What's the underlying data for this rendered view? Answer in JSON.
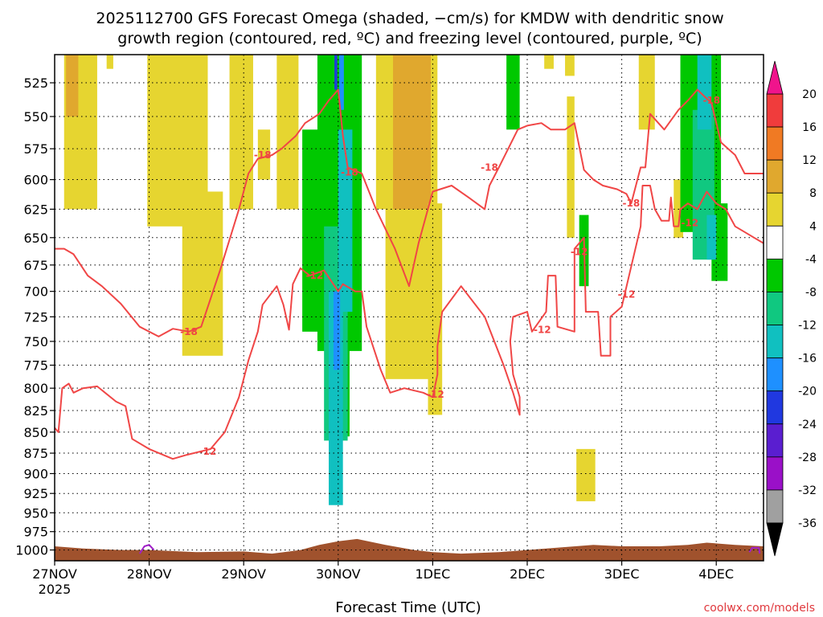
{
  "chart_data": {
    "type": "heatmap",
    "title_lines": [
      "2025112700 GFS Forecast Omega (shaded, −cm/s) for KMDW with dendritic snow",
      "growth region (contoured, red, ºC) and freezing level (contoured, purple, ºC)"
    ],
    "xlabel": "Forecast Time (UTC)",
    "ylabel": "",
    "credit": "coolwx.com/models",
    "x_ticks": [
      {
        "day": 0,
        "label": "27NOV",
        "sublabel": "2025"
      },
      {
        "day": 1,
        "label": "28NOV"
      },
      {
        "day": 2,
        "label": "29NOV"
      },
      {
        "day": 3,
        "label": "30NOV"
      },
      {
        "day": 4,
        "label": "1DEC"
      },
      {
        "day": 5,
        "label": "2DEC"
      },
      {
        "day": 6,
        "label": "3DEC"
      },
      {
        "day": 7,
        "label": "4DEC"
      }
    ],
    "xlim": [
      0,
      7.5
    ],
    "y_ticks": [
      525,
      550,
      575,
      600,
      625,
      650,
      675,
      700,
      725,
      750,
      775,
      800,
      825,
      850,
      875,
      900,
      925,
      950,
      975,
      1000
    ],
    "ylim": [
      1015,
      505
    ],
    "y_scale": "log",
    "grid": true,
    "colorbar": {
      "labels": [
        "20",
        "16",
        "12",
        "8",
        "4",
        "-4",
        "-8",
        "-12",
        "-16",
        "-20",
        "-24",
        "-28",
        "-32",
        "-36"
      ],
      "colors": [
        "#f03c3c",
        "#f07a23",
        "#e0a82e",
        "#e6d530",
        "#ffffff",
        "#00c800",
        "#10c880",
        "#10c0c0",
        "#1e90ff",
        "#2038e0",
        "#5a1ed0",
        "#9a10c8",
        "#a0a0a0"
      ],
      "top_arrow_color": "#f0148c",
      "bottom_arrow_color": "#000000"
    },
    "omega_regions": [
      {
        "color": "#e6d530",
        "x0": 0.1,
        "x1": 0.45,
        "p_top": 505,
        "p_bot": 625
      },
      {
        "color": "#e0a82e",
        "x0": 0.12,
        "x1": 0.25,
        "p_top": 505,
        "p_bot": 550
      },
      {
        "color": "#e6d530",
        "x0": 0.55,
        "x1": 0.62,
        "p_top": 505,
        "p_bot": 515
      },
      {
        "color": "#e6d530",
        "x0": 0.98,
        "x1": 1.62,
        "p_top": 505,
        "p_bot": 640
      },
      {
        "color": "#e6d530",
        "x0": 1.35,
        "x1": 1.78,
        "p_top": 610,
        "p_bot": 765
      },
      {
        "color": "#e6d530",
        "x0": 1.85,
        "x1": 2.1,
        "p_top": 505,
        "p_bot": 625
      },
      {
        "color": "#e6d530",
        "x0": 2.15,
        "x1": 2.28,
        "p_top": 560,
        "p_bot": 600
      },
      {
        "color": "#e6d530",
        "x0": 2.35,
        "x1": 2.58,
        "p_top": 505,
        "p_bot": 625
      },
      {
        "color": "#00c800",
        "x0": 2.62,
        "x1": 2.82,
        "p_top": 560,
        "p_bot": 740
      },
      {
        "color": "#00c800",
        "x0": 2.78,
        "x1": 3.25,
        "p_top": 505,
        "p_bot": 760
      },
      {
        "color": "#00c800",
        "x0": 2.9,
        "x1": 3.12,
        "p_top": 700,
        "p_bot": 855
      },
      {
        "color": "#10c880",
        "x0": 2.85,
        "x1": 3.1,
        "p_top": 640,
        "p_bot": 860
      },
      {
        "color": "#10c0c0",
        "x0": 2.9,
        "x1": 3.05,
        "p_top": 700,
        "p_bot": 940
      },
      {
        "color": "#10c0c0",
        "x0": 3.0,
        "x1": 3.15,
        "p_top": 560,
        "p_bot": 720
      },
      {
        "color": "#1e90ff",
        "x0": 2.95,
        "x1": 3.02,
        "p_top": 700,
        "p_bot": 780
      },
      {
        "color": "#1e90ff",
        "x0": 3.01,
        "x1": 3.06,
        "p_top": 505,
        "p_bot": 545
      },
      {
        "color": "#2038e0",
        "x0": 2.96,
        "x1": 2.99,
        "p_top": 505,
        "p_bot": 530
      },
      {
        "color": "#e6d530",
        "x0": 3.4,
        "x1": 3.7,
        "p_top": 505,
        "p_bot": 625
      },
      {
        "color": "#e6d530",
        "x0": 3.5,
        "x1": 4.05,
        "p_top": 505,
        "p_bot": 790
      },
      {
        "color": "#e0a82e",
        "x0": 3.58,
        "x1": 3.98,
        "p_top": 505,
        "p_bot": 625
      },
      {
        "color": "#e6d530",
        "x0": 3.95,
        "x1": 4.1,
        "p_top": 620,
        "p_bot": 830
      },
      {
        "color": "#00c800",
        "x0": 4.78,
        "x1": 4.92,
        "p_top": 505,
        "p_bot": 560
      },
      {
        "color": "#e6d530",
        "x0": 5.18,
        "x1": 5.28,
        "p_top": 505,
        "p_bot": 515
      },
      {
        "color": "#e6d530",
        "x0": 5.4,
        "x1": 5.5,
        "p_top": 505,
        "p_bot": 520
      },
      {
        "color": "#e6d530",
        "x0": 5.42,
        "x1": 5.5,
        "p_top": 535,
        "p_bot": 650
      },
      {
        "color": "#00c800",
        "x0": 5.55,
        "x1": 5.65,
        "p_top": 630,
        "p_bot": 695
      },
      {
        "color": "#e6d530",
        "x0": 5.52,
        "x1": 5.72,
        "p_top": 870,
        "p_bot": 935
      },
      {
        "color": "#e6d530",
        "x0": 6.18,
        "x1": 6.35,
        "p_top": 505,
        "p_bot": 560
      },
      {
        "color": "#e6d530",
        "x0": 6.55,
        "x1": 6.65,
        "p_top": 600,
        "p_bot": 650
      },
      {
        "color": "#00c800",
        "x0": 6.62,
        "x1": 7.05,
        "p_top": 505,
        "p_bot": 645
      },
      {
        "color": "#00c800",
        "x0": 6.95,
        "x1": 7.12,
        "p_top": 620,
        "p_bot": 690
      },
      {
        "color": "#10c880",
        "x0": 6.75,
        "x1": 6.98,
        "p_top": 545,
        "p_bot": 670
      },
      {
        "color": "#10c0c0",
        "x0": 6.8,
        "x1": 6.95,
        "p_top": 505,
        "p_bot": 560
      },
      {
        "color": "#10c0c0",
        "x0": 6.9,
        "x1": 7.0,
        "p_top": 630,
        "p_bot": 670
      }
    ],
    "contours": [
      {
        "level": -12,
        "color": "#f04646",
        "points": [
          [
            0.0,
            845
          ],
          [
            0.04,
            850
          ],
          [
            0.08,
            800
          ],
          [
            0.15,
            795
          ],
          [
            0.2,
            805
          ],
          [
            0.3,
            800
          ],
          [
            0.45,
            798
          ],
          [
            0.65,
            815
          ],
          [
            0.75,
            820
          ],
          [
            0.82,
            858
          ],
          [
            1.0,
            870
          ],
          [
            1.25,
            882
          ],
          [
            1.4,
            877
          ],
          [
            1.65,
            870
          ],
          [
            1.8,
            850
          ],
          [
            1.95,
            810
          ],
          [
            2.05,
            770
          ],
          [
            2.15,
            740
          ],
          [
            2.2,
            713
          ],
          [
            2.35,
            695
          ],
          [
            2.42,
            713
          ],
          [
            2.48,
            738
          ],
          [
            2.52,
            693
          ],
          [
            2.6,
            678
          ],
          [
            2.7,
            685
          ],
          [
            2.85,
            680
          ],
          [
            3.0,
            700
          ],
          [
            3.05,
            693
          ],
          [
            3.18,
            700
          ],
          [
            3.25,
            700
          ],
          [
            3.3,
            735
          ],
          [
            3.45,
            780
          ],
          [
            3.55,
            805
          ],
          [
            3.7,
            800
          ],
          [
            3.9,
            805
          ],
          [
            4.0,
            810
          ],
          [
            4.05,
            785
          ],
          [
            4.05,
            755
          ],
          [
            4.1,
            720
          ],
          [
            4.3,
            695
          ],
          [
            4.55,
            725
          ],
          [
            4.75,
            775
          ],
          [
            4.85,
            805
          ],
          [
            4.92,
            830
          ],
          [
            4.92,
            810
          ],
          [
            4.85,
            785
          ],
          [
            4.82,
            750
          ],
          [
            4.85,
            725
          ],
          [
            5.0,
            720
          ],
          [
            5.05,
            740
          ],
          [
            5.2,
            720
          ],
          [
            5.22,
            685
          ],
          [
            5.3,
            685
          ],
          [
            5.32,
            735
          ],
          [
            5.5,
            740
          ],
          [
            5.5,
            660
          ],
          [
            5.6,
            650
          ],
          [
            5.62,
            720
          ],
          [
            5.75,
            720
          ],
          [
            5.78,
            765
          ],
          [
            5.88,
            765
          ],
          [
            5.88,
            725
          ],
          [
            6.0,
            715
          ],
          [
            6.2,
            640
          ],
          [
            6.22,
            605
          ],
          [
            6.3,
            605
          ],
          [
            6.35,
            625
          ],
          [
            6.42,
            635
          ],
          [
            6.5,
            635
          ],
          [
            6.52,
            615
          ],
          [
            6.55,
            640
          ],
          [
            6.6,
            640
          ],
          [
            6.62,
            625
          ],
          [
            6.7,
            620
          ],
          [
            6.8,
            625
          ],
          [
            6.9,
            610
          ],
          [
            7.0,
            620
          ],
          [
            7.1,
            625
          ],
          [
            7.2,
            640
          ],
          [
            7.3,
            645
          ],
          [
            7.4,
            650
          ],
          [
            7.5,
            655
          ]
        ],
        "labels": [
          {
            "x": 1.62,
            "p": 873
          },
          {
            "x": 2.75,
            "p": 685
          },
          {
            "x": 4.03,
            "p": 807
          },
          {
            "x": 5.16,
            "p": 738
          },
          {
            "x": 5.55,
            "p": 663
          },
          {
            "x": 6.05,
            "p": 703
          },
          {
            "x": 6.72,
            "p": 637
          }
        ]
      },
      {
        "level": -18,
        "color": "#f04646",
        "points": [
          [
            0.0,
            660
          ],
          [
            0.1,
            660
          ],
          [
            0.2,
            665
          ],
          [
            0.35,
            685
          ],
          [
            0.5,
            695
          ],
          [
            0.7,
            712
          ],
          [
            0.9,
            735
          ],
          [
            1.1,
            745
          ],
          [
            1.25,
            737
          ],
          [
            1.42,
            740
          ],
          [
            1.55,
            735
          ],
          [
            1.75,
            680
          ],
          [
            1.95,
            625
          ],
          [
            2.05,
            595
          ],
          [
            2.15,
            583
          ],
          [
            2.3,
            580
          ],
          [
            2.4,
            575
          ],
          [
            2.55,
            565
          ],
          [
            2.65,
            555
          ],
          [
            2.8,
            548
          ],
          [
            2.9,
            538
          ],
          [
            3.0,
            530
          ],
          [
            3.05,
            565
          ],
          [
            3.1,
            590
          ],
          [
            3.25,
            595
          ],
          [
            3.4,
            625
          ],
          [
            3.6,
            660
          ],
          [
            3.75,
            695
          ],
          [
            3.85,
            655
          ],
          [
            4.0,
            610
          ],
          [
            4.2,
            605
          ],
          [
            4.38,
            615
          ],
          [
            4.55,
            625
          ],
          [
            4.6,
            605
          ],
          [
            4.7,
            590
          ],
          [
            4.9,
            560
          ],
          [
            5.0,
            557
          ],
          [
            5.15,
            555
          ],
          [
            5.25,
            560
          ],
          [
            5.4,
            560
          ],
          [
            5.5,
            555
          ],
          [
            5.6,
            592
          ],
          [
            5.7,
            600
          ],
          [
            5.8,
            605
          ],
          [
            5.95,
            608
          ],
          [
            6.05,
            612
          ],
          [
            6.1,
            620
          ],
          [
            6.2,
            590
          ],
          [
            6.25,
            590
          ],
          [
            6.3,
            548
          ],
          [
            6.45,
            560
          ],
          [
            6.6,
            545
          ],
          [
            6.7,
            538
          ],
          [
            6.8,
            530
          ],
          [
            6.95,
            540
          ],
          [
            7.05,
            570
          ],
          [
            7.2,
            580
          ],
          [
            7.3,
            595
          ],
          [
            7.5,
            595
          ]
        ],
        "labels": [
          {
            "x": 1.42,
            "p": 740
          },
          {
            "x": 2.2,
            "p": 580
          },
          {
            "x": 3.12,
            "p": 594
          },
          {
            "x": 4.6,
            "p": 590
          },
          {
            "x": 6.1,
            "p": 620
          },
          {
            "x": 6.95,
            "p": 538
          }
        ]
      }
    ],
    "freezing_level": [
      {
        "color": "#a020c8",
        "points": [
          [
            0.9,
            1005
          ],
          [
            0.95,
            995
          ],
          [
            1.0,
            993
          ],
          [
            1.05,
            1000
          ]
        ]
      },
      {
        "color": "#a020c8",
        "points": [
          [
            7.35,
            1003
          ],
          [
            7.38,
            997
          ],
          [
            7.45,
            997
          ],
          [
            7.46,
            1005
          ]
        ]
      }
    ],
    "terrain": {
      "color": "#a0522d",
      "points": [
        [
          0.0,
          995
        ],
        [
          0.3,
          998
        ],
        [
          0.7,
          1000
        ],
        [
          1.0,
          1000
        ],
        [
          1.5,
          1003
        ],
        [
          2.0,
          1002
        ],
        [
          2.3,
          1005
        ],
        [
          2.6,
          1000
        ],
        [
          2.8,
          993
        ],
        [
          3.0,
          988
        ],
        [
          3.2,
          985
        ],
        [
          3.5,
          993
        ],
        [
          3.8,
          1000
        ],
        [
          4.0,
          1003
        ],
        [
          4.3,
          1005
        ],
        [
          4.7,
          1003
        ],
        [
          5.0,
          1000
        ],
        [
          5.3,
          997
        ],
        [
          5.7,
          993
        ],
        [
          6.0,
          995
        ],
        [
          6.4,
          995
        ],
        [
          6.7,
          993
        ],
        [
          6.9,
          990
        ],
        [
          7.2,
          993
        ],
        [
          7.5,
          995
        ]
      ]
    }
  }
}
